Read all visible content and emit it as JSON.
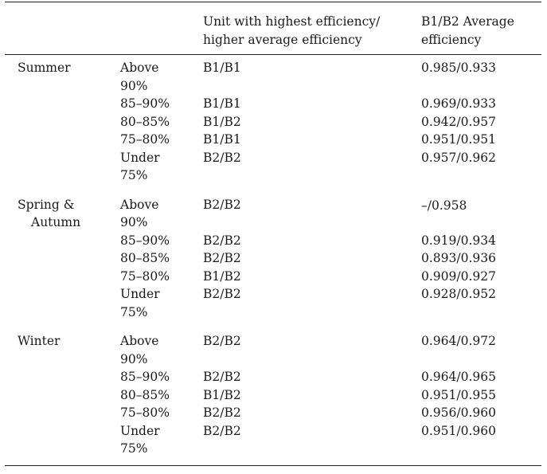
{
  "header": {
    "col_season": "",
    "col_range": "",
    "col_unit": "Unit with highest efficiency/ higher average efficiency",
    "col_unit_line1": "Unit with highest efficiency/",
    "col_unit_line2": "higher average efficiency",
    "col_eff_line1": "B1/B2 Average",
    "col_eff_line2": "efficiency"
  },
  "groups": [
    {
      "season_line1": "Summer",
      "season_line2": "",
      "rows": [
        {
          "range_line1": "Above",
          "range_line2": "90%",
          "unit": "B1/B1",
          "eff": "0.985/0.933"
        },
        {
          "range_line1": "85–90%",
          "range_line2": "",
          "unit": "B1/B1",
          "eff": "0.969/0.933"
        },
        {
          "range_line1": "80–85%",
          "range_line2": "",
          "unit": "B1/B2",
          "eff": "0.942/0.957"
        },
        {
          "range_line1": "75–80%",
          "range_line2": "",
          "unit": "B1/B1",
          "eff": "0.951/0.951"
        },
        {
          "range_line1": "Under",
          "range_line2": "75%",
          "unit": "B2/B2",
          "eff": "0.957/0.962"
        }
      ]
    },
    {
      "season_line1": "Spring &",
      "season_line2": "Autumn",
      "rows": [
        {
          "range_line1": "Above",
          "range_line2": "90%",
          "unit": "B2/B2",
          "eff": "–/0.958"
        },
        {
          "range_line1": "85–90%",
          "range_line2": "",
          "unit": "B2/B2",
          "eff": "0.919/0.934"
        },
        {
          "range_line1": "80–85%",
          "range_line2": "",
          "unit": "B2/B2",
          "eff": "0.893/0.936"
        },
        {
          "range_line1": "75–80%",
          "range_line2": "",
          "unit": "B1/B2",
          "eff": "0.909/0.927"
        },
        {
          "range_line1": "Under",
          "range_line2": "75%",
          "unit": "B2/B2",
          "eff": "0.928/0.952"
        }
      ]
    },
    {
      "season_line1": "Winter",
      "season_line2": "",
      "rows": [
        {
          "range_line1": "Above",
          "range_line2": "90%",
          "unit": "B2/B2",
          "eff": "0.964/0.972"
        },
        {
          "range_line1": "85–90%",
          "range_line2": "",
          "unit": "B2/B2",
          "eff": "0.964/0.965"
        },
        {
          "range_line1": "80–85%",
          "range_line2": "",
          "unit": "B1/B2",
          "eff": "0.951/0.955"
        },
        {
          "range_line1": "75–80%",
          "range_line2": "",
          "unit": "B2/B2",
          "eff": "0.956/0.960"
        },
        {
          "range_line1": "Under",
          "range_line2": "75%",
          "unit": "B2/B2",
          "eff": "0.951/0.960"
        }
      ]
    }
  ]
}
